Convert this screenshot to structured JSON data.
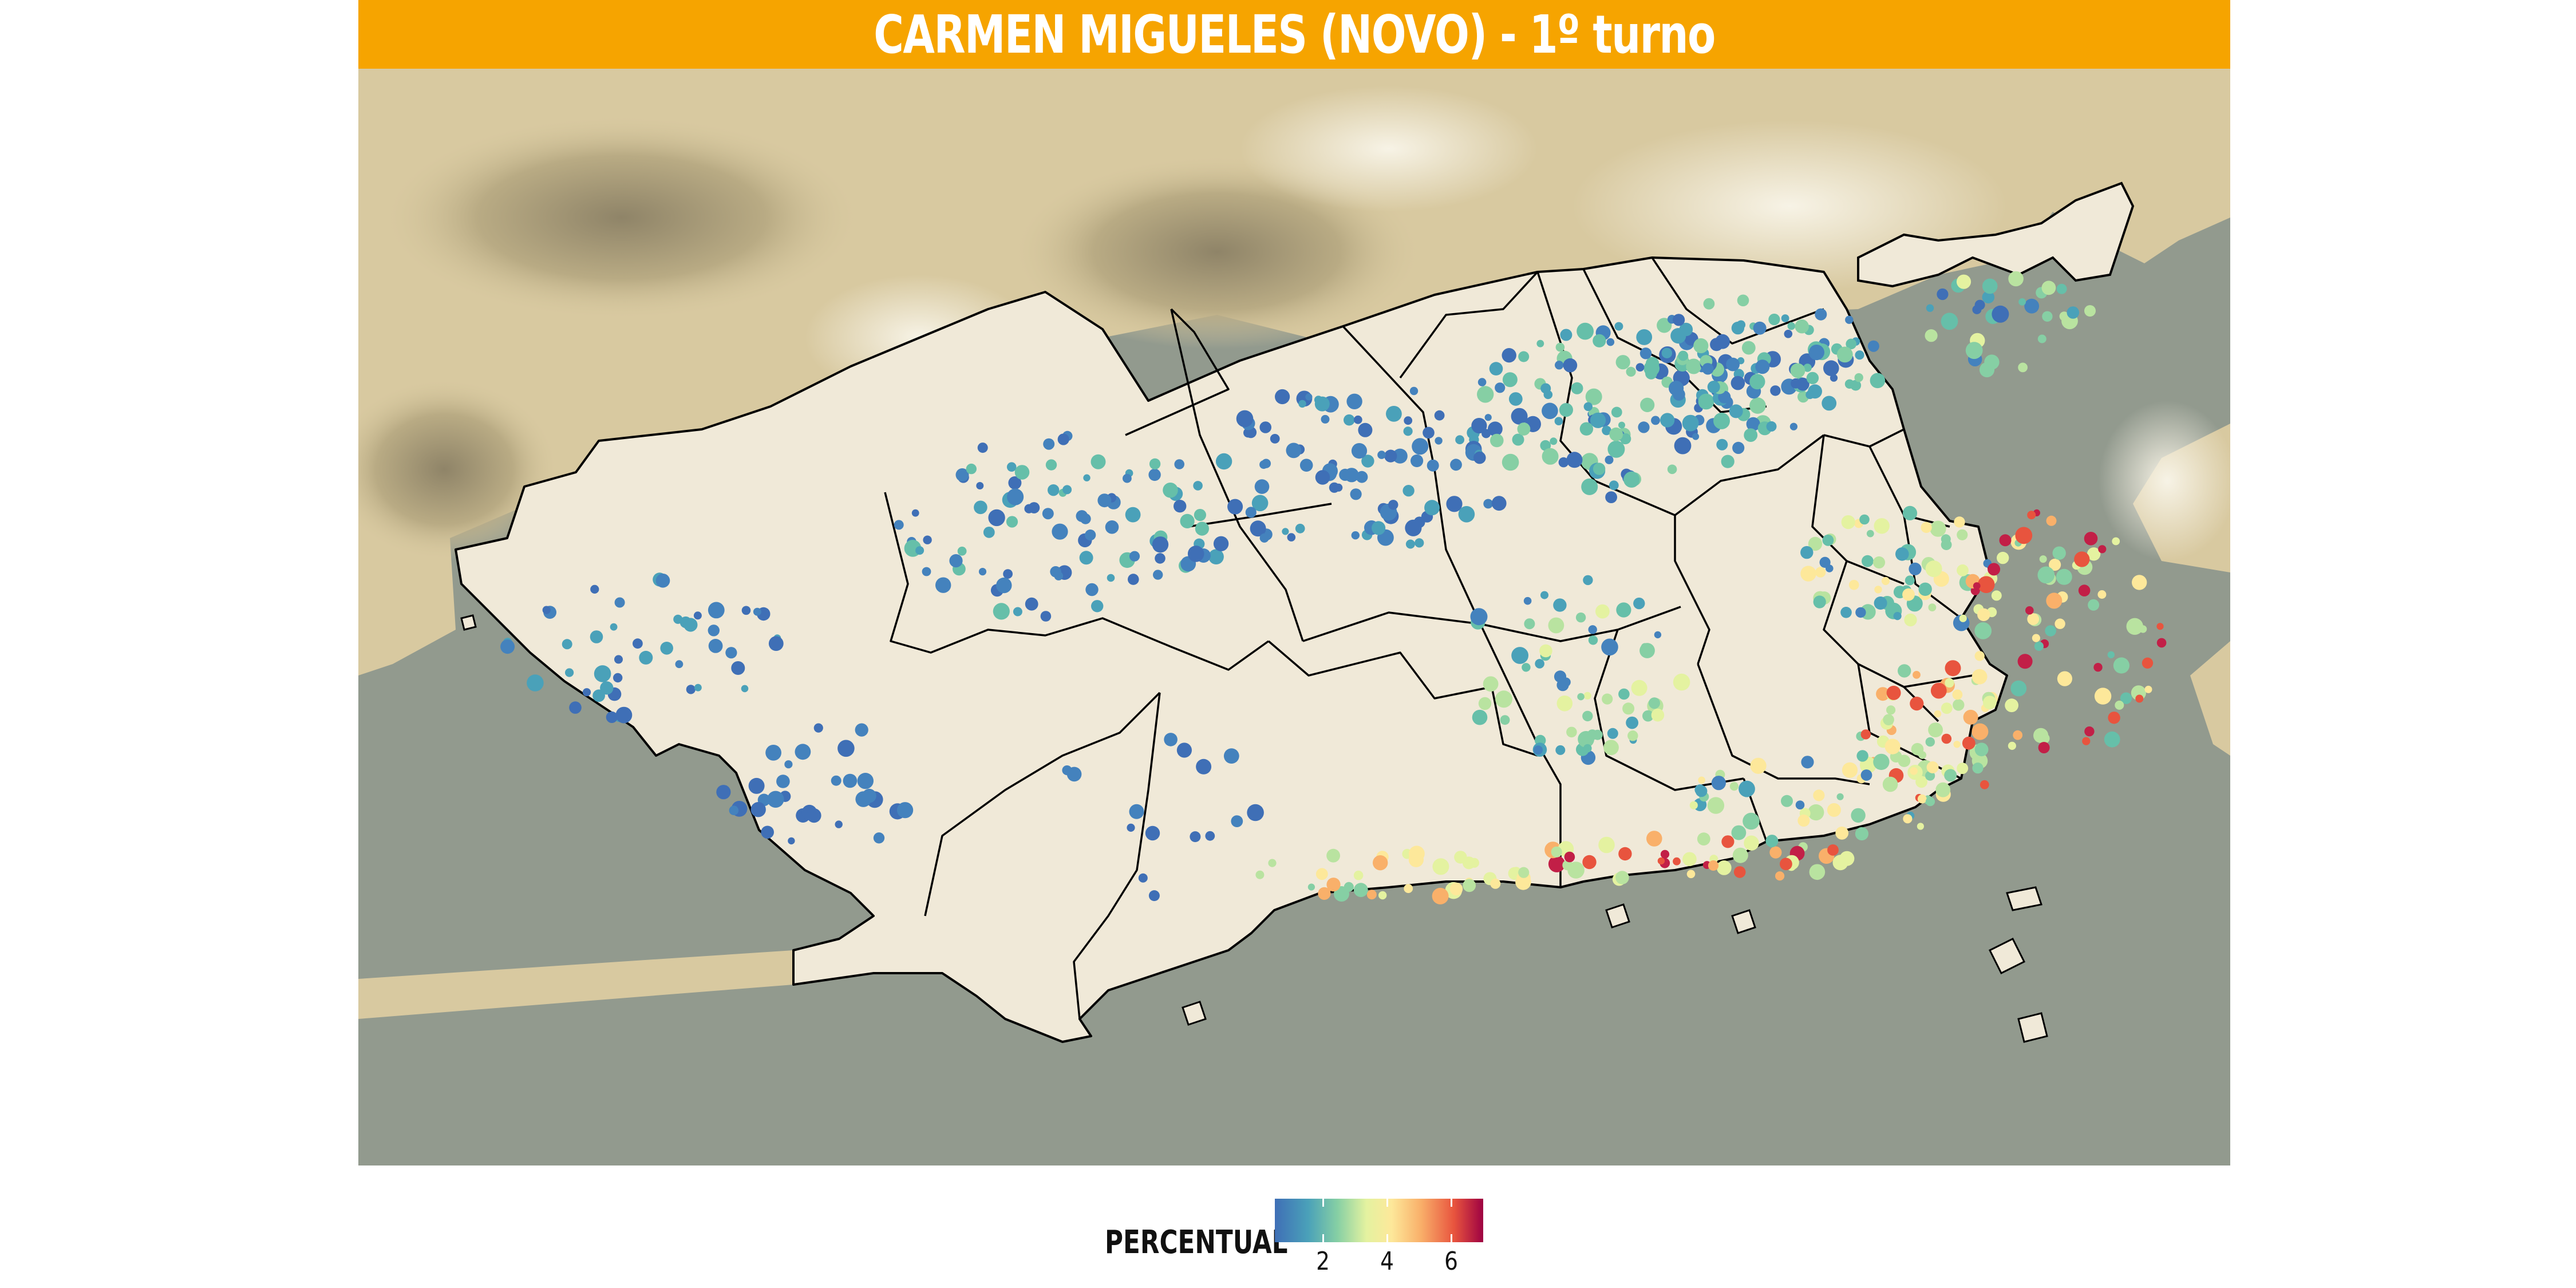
{
  "title": "CARMEN MIGUELES (NOVO) - 1º turno",
  "colors": {
    "title_bar": "#f6a400",
    "sea": "#929a8e",
    "land": "#d8c9a0",
    "municipality": "#f0e9d8",
    "boundaries": "#000000",
    "scale_low": "#3f6fb6",
    "scale_mid": "#e4f2a0",
    "scale_high": "#9e0142"
  },
  "map": {
    "basemap": "terrain shaded relief",
    "region": "Município do Rio de Janeiro",
    "point_symbol": "circle colored by vote percentage"
  },
  "legend": {
    "title": "PERCENTUAL",
    "ticks": [
      "2",
      "4",
      "6"
    ],
    "tick_values": [
      2,
      4,
      6
    ],
    "range": [
      0.5,
      7
    ]
  }
}
